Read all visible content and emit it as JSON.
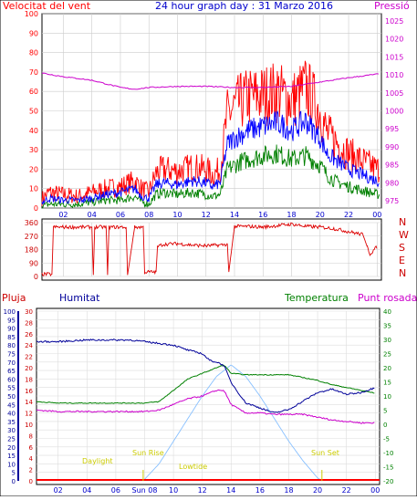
{
  "header": {
    "left_title": "Velocitat del vent",
    "center_title": "24 hour graph day : 31 Marzo 2016",
    "right_title": "Pressió"
  },
  "lower_labels": {
    "pluja": "Pluja",
    "humitat": "Humitat",
    "temperatura": "Temperatura",
    "punt_rosada": "Punt rosada"
  },
  "annotations": {
    "sun_rise": "Sun Rise",
    "sun_set": "Sun Set",
    "daylight": "Daylight",
    "lowtide": "Lowtide"
  },
  "colors": {
    "wind_max": "#ff0000",
    "wind_avg": "#0000ff",
    "wind_min": "#008000",
    "pressure": "#cc00cc",
    "direction": "#dd0000",
    "humidity": "#000099",
    "temperature": "#008000",
    "dew_point": "#cc00cc",
    "sun": "#88c0ff",
    "annotation": "#cccc00"
  },
  "chart_data": [
    {
      "type": "line",
      "xlabel": "",
      "ylabel": "Velocitat del vent",
      "ylabel_right": "Pressió",
      "x_ticks": [
        "02",
        "04",
        "06",
        "08",
        "10",
        "12",
        "14",
        "16",
        "18",
        "20",
        "22",
        "00"
      ],
      "y_ticks_left": [
        0,
        10,
        20,
        30,
        40,
        50,
        60,
        70,
        80,
        90,
        100
      ],
      "y_ticks_right": [
        975,
        980,
        985,
        990,
        995,
        1000,
        1005,
        1010,
        1015,
        1020,
        1025
      ],
      "ylim": [
        0,
        100
      ],
      "ylim_right": [
        973,
        1027
      ],
      "xlim": [
        0.5,
        24.3
      ],
      "series": [
        {
          "name": "wind_max",
          "axis": "left",
          "x": [
            0.5,
            1,
            2,
            3,
            4,
            5,
            6,
            7,
            7.5,
            8,
            8.5,
            9,
            10,
            11,
            12,
            12.5,
            13,
            13.5,
            14,
            14.5,
            15,
            16,
            17,
            18,
            19,
            20,
            20.5,
            21,
            22,
            23,
            24
          ],
          "values": [
            5,
            8,
            7,
            6,
            8,
            10,
            11,
            14,
            10,
            8,
            18,
            20,
            19,
            21,
            20,
            17,
            20,
            48,
            52,
            55,
            57,
            58,
            60,
            55,
            62,
            50,
            38,
            35,
            28,
            24,
            20
          ]
        },
        {
          "name": "wind_avg",
          "axis": "left",
          "x": [
            0.5,
            1,
            2,
            3,
            4,
            5,
            6,
            7,
            7.5,
            8,
            8.5,
            9,
            10,
            11,
            12,
            12.5,
            13,
            13.5,
            14,
            14.5,
            15,
            16,
            17,
            18,
            19,
            20,
            20.5,
            21,
            22,
            23,
            24
          ],
          "values": [
            3,
            5,
            4,
            4,
            5,
            7,
            8,
            10,
            6,
            5,
            12,
            13,
            12,
            14,
            13,
            11,
            13,
            33,
            36,
            38,
            40,
            42,
            44,
            40,
            45,
            36,
            28,
            25,
            20,
            17,
            14
          ]
        },
        {
          "name": "wind_min",
          "axis": "left",
          "x": [
            0.5,
            1,
            2,
            3,
            4,
            5,
            6,
            7,
            7.5,
            8,
            8.5,
            9,
            10,
            11,
            12,
            12.5,
            13,
            13.5,
            14,
            14.5,
            15,
            16,
            17,
            18,
            19,
            20,
            20.5,
            21,
            22,
            23,
            24
          ],
          "values": [
            1,
            2,
            2,
            2,
            3,
            4,
            4,
            6,
            3,
            2,
            7,
            8,
            7,
            8,
            7,
            6,
            7,
            20,
            22,
            24,
            25,
            27,
            28,
            25,
            27,
            22,
            17,
            14,
            11,
            9,
            7
          ]
        },
        {
          "name": "pressure",
          "axis": "right",
          "x": [
            0.5,
            2,
            4,
            6,
            7,
            8,
            10,
            12,
            14,
            16,
            18,
            20,
            22,
            24
          ],
          "values": [
            1010.5,
            1009.5,
            1008.5,
            1006.5,
            1006,
            1006.5,
            1006.8,
            1006.8,
            1006.5,
            1006.5,
            1006.8,
            1008,
            1009.2,
            1010.2
          ]
        }
      ]
    },
    {
      "type": "line",
      "ylabel": "",
      "ylabel_right": "N W S E N",
      "y_ticks_left": [
        0,
        90,
        180,
        270,
        360
      ],
      "right_labels": [
        "N",
        "W",
        "S",
        "E",
        "N"
      ],
      "ylim": [
        0,
        360
      ],
      "xlim": [
        0.5,
        24.3
      ],
      "series": [
        {
          "name": "direction",
          "x": [
            0.5,
            1.2,
            1.3,
            2,
            3,
            4,
            4.1,
            4.2,
            5,
            5.1,
            5.2,
            6,
            6.4,
            6.5,
            7,
            7.6,
            7.7,
            8,
            8.5,
            8.6,
            9,
            10,
            11,
            12,
            13,
            13.5,
            13.6,
            14,
            15,
            16,
            17,
            18,
            19,
            20,
            21,
            22,
            23,
            23.3,
            23.5,
            24
          ],
          "values": [
            15,
            15,
            330,
            330,
            330,
            330,
            10,
            330,
            330,
            10,
            330,
            330,
            330,
            10,
            330,
            330,
            30,
            30,
            30,
            200,
            215,
            220,
            210,
            205,
            210,
            215,
            30,
            335,
            335,
            330,
            340,
            350,
            335,
            330,
            320,
            300,
            280,
            200,
            150,
            200
          ]
        }
      ]
    },
    {
      "type": "line",
      "ylabel_left_rain": "Pluja",
      "ylabel_left_hum": "Humitat",
      "ylabel_right": "Temperatura / Punt rosada",
      "x_ticks": [
        "02",
        "04",
        "06",
        "Sun 08",
        "10",
        "12",
        "14",
        "16",
        "18",
        "20",
        "22",
        "00"
      ],
      "y_ticks_rain": [
        0,
        2,
        4,
        6,
        8,
        10,
        12,
        14,
        16,
        18,
        20,
        22,
        24,
        26,
        28,
        30
      ],
      "y_ticks_hum": [
        0,
        5,
        10,
        15,
        20,
        25,
        30,
        35,
        40,
        45,
        50,
        55,
        60,
        65,
        70,
        75,
        80,
        85,
        90,
        95,
        100
      ],
      "y_ticks_temp": [
        -20,
        -15,
        -10,
        -5,
        0,
        5,
        10,
        15,
        20,
        25,
        30,
        35,
        40
      ],
      "ylim_hum": [
        0,
        100
      ],
      "ylim_temp": [
        -20,
        40
      ],
      "xlim": [
        0.5,
        24.3
      ],
      "series": [
        {
          "name": "humidity",
          "axis": "hum",
          "x": [
            0.5,
            2,
            4,
            6,
            7,
            8,
            9,
            10,
            11,
            12,
            12.5,
            13,
            13.5,
            14,
            14.5,
            15,
            16,
            17,
            18,
            19,
            20,
            21,
            22,
            23,
            24
          ],
          "values": [
            82,
            82,
            83,
            83,
            83,
            82,
            81,
            80,
            77,
            75,
            71,
            70,
            68,
            58,
            52,
            46,
            43,
            40,
            42,
            47,
            52,
            54,
            51,
            52,
            55
          ]
        },
        {
          "name": "temperature",
          "axis": "temp",
          "x": [
            0.5,
            2,
            4,
            6,
            7,
            8,
            9,
            10,
            11,
            12,
            13,
            13.5,
            14,
            15,
            16,
            17,
            18,
            19,
            20,
            21,
            22,
            23,
            24
          ],
          "values": [
            8,
            7.5,
            7.5,
            7.5,
            7.5,
            7.5,
            8,
            12,
            16,
            18,
            20,
            21,
            18,
            17.5,
            17.5,
            17.5,
            17.5,
            16.5,
            15.5,
            14,
            13,
            12,
            11
          ]
        },
        {
          "name": "dew_point",
          "axis": "temp",
          "x": [
            0.5,
            2,
            4,
            6,
            7,
            8,
            9,
            10,
            11,
            12,
            13,
            13.5,
            14,
            15,
            16,
            17,
            18,
            19,
            20,
            21,
            22,
            23,
            24
          ],
          "values": [
            5,
            4.5,
            4.5,
            4.5,
            4.5,
            4.5,
            5,
            7,
            9,
            10,
            12,
            12,
            7,
            4,
            4,
            3.5,
            3.5,
            3.5,
            2.5,
            1.5,
            1,
            0.5,
            0.5
          ]
        },
        {
          "name": "sun",
          "axis": "temp",
          "x": [
            7.9,
            9,
            10,
            11,
            12,
            13,
            14,
            15,
            16,
            17,
            18,
            19,
            20,
            20.3
          ],
          "values": [
            -20,
            -14,
            -6,
            2,
            10,
            17,
            21,
            17,
            10,
            2,
            -6,
            -13,
            -19,
            -20
          ]
        },
        {
          "name": "rain",
          "axis": "rain",
          "x": [
            0.5,
            24.3
          ],
          "values": [
            0,
            0
          ]
        }
      ]
    }
  ]
}
